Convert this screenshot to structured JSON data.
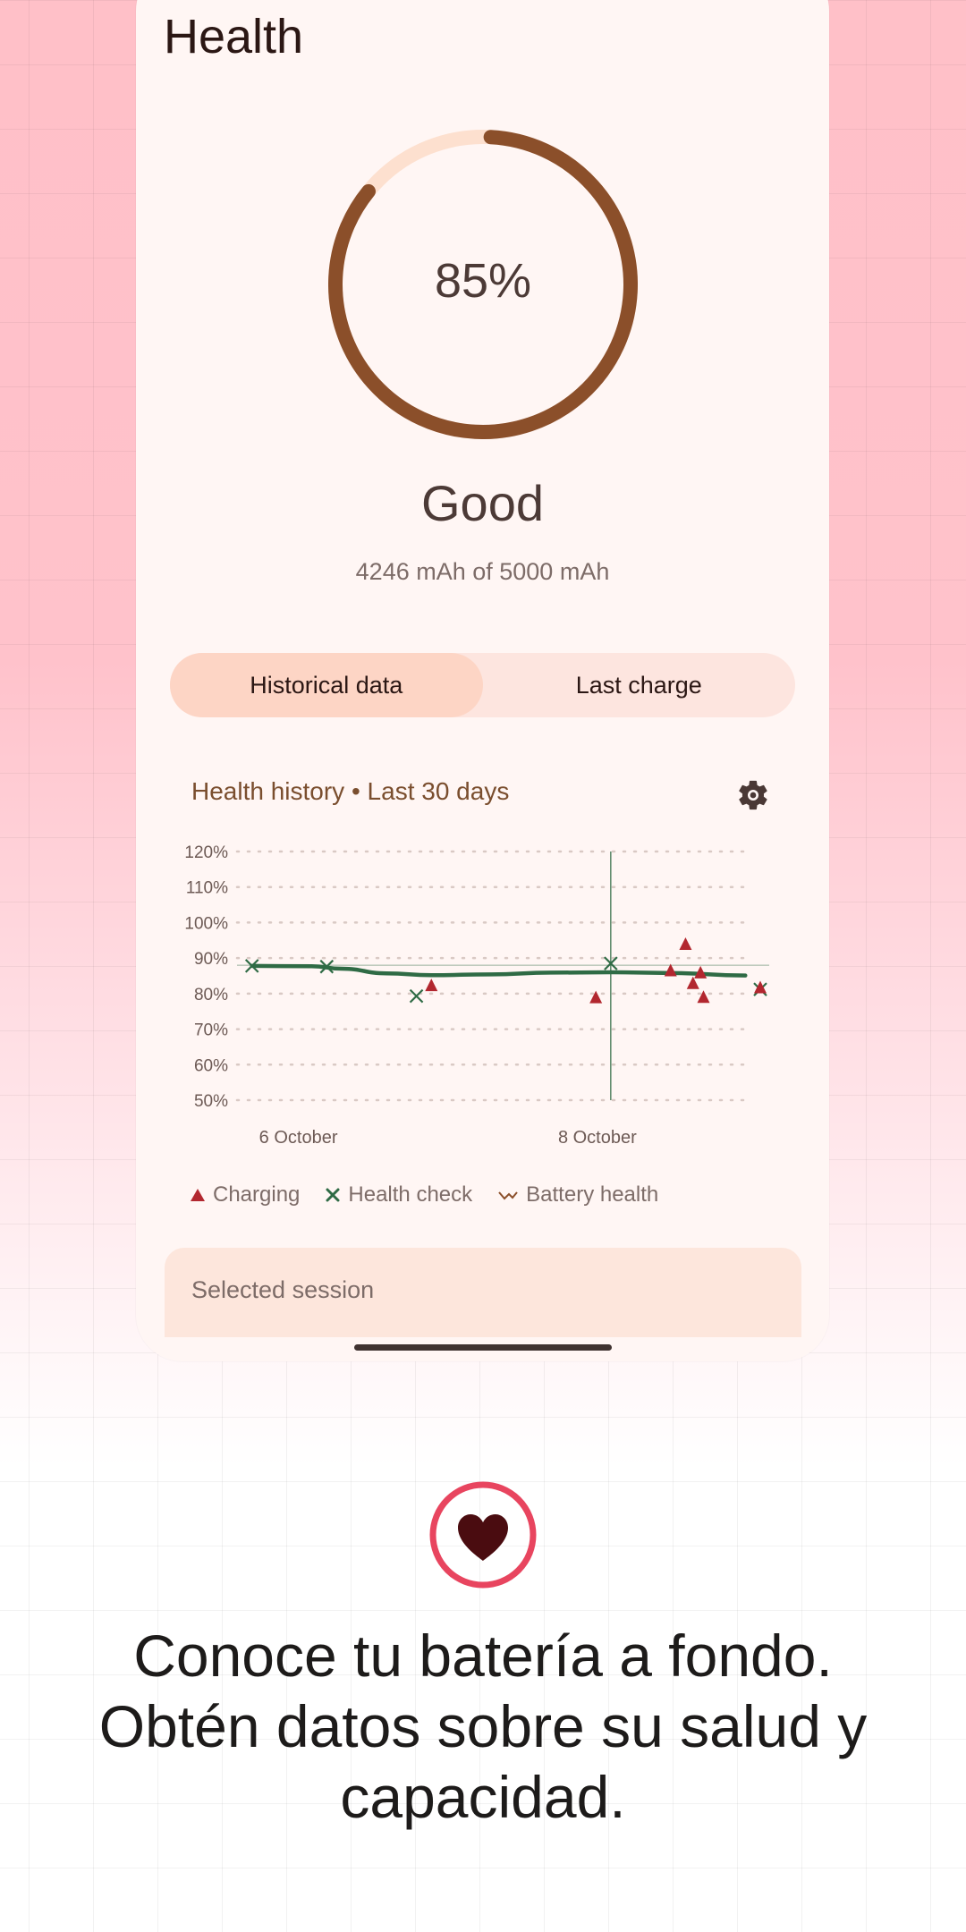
{
  "header": {
    "title": "Health"
  },
  "gauge": {
    "percent_text": "85%",
    "fill_fraction": 0.85,
    "status": "Good",
    "capacity": "4246 mAh of 5000 mAh"
  },
  "tabs": [
    {
      "label": "Historical data",
      "active": true
    },
    {
      "label": "Last charge",
      "active": false
    }
  ],
  "history": {
    "title": "Health history • Last 30 days"
  },
  "chart_data": {
    "type": "line",
    "title": "Health history • Last 30 days",
    "x_tick_labels": [
      "6 October",
      "8 October"
    ],
    "y_ticks": [
      50,
      60,
      70,
      80,
      90,
      100,
      110,
      120
    ],
    "y_tick_labels": [
      "50%",
      "60%",
      "70%",
      "80%",
      "90%",
      "100%",
      "110%",
      "120%"
    ],
    "ylim": [
      50,
      120
    ],
    "xlim": [
      5.5,
      9.0
    ],
    "grid": true,
    "legend_position": "bottom",
    "highlight": {
      "x": 8.0,
      "y": 88
    },
    "series": [
      {
        "name": "Battery health",
        "kind": "line",
        "color": "#2f6b45",
        "points": [
          [
            5.6,
            87.8
          ],
          [
            6.0,
            87.7
          ],
          [
            6.2,
            87.0
          ],
          [
            6.5,
            85.7
          ],
          [
            6.8,
            85.2
          ],
          [
            7.2,
            85.4
          ],
          [
            7.6,
            85.9
          ],
          [
            8.0,
            86.0
          ],
          [
            8.4,
            85.8
          ],
          [
            8.9,
            85.1
          ]
        ]
      },
      {
        "name": "Health check",
        "kind": "scatter",
        "marker": "x",
        "color": "#2f6b45",
        "points": [
          [
            5.6,
            87.8
          ],
          [
            6.1,
            87.6
          ],
          [
            6.7,
            79.3
          ],
          [
            8.0,
            88.5
          ],
          [
            9.0,
            81.2
          ]
        ]
      },
      {
        "name": "Charging",
        "kind": "scatter",
        "marker": "triangle",
        "color": "#b2272f",
        "points": [
          [
            6.8,
            82.2
          ],
          [
            7.9,
            78.8
          ],
          [
            8.4,
            86.4
          ],
          [
            8.5,
            93.8
          ],
          [
            8.55,
            82.8
          ],
          [
            8.6,
            85.8
          ],
          [
            8.62,
            78.9
          ],
          [
            9.0,
            81.6
          ]
        ]
      }
    ]
  },
  "legend": {
    "charging": "Charging",
    "health_check": "Health check",
    "battery_health": "Battery health"
  },
  "session": {
    "label": "Selected session"
  },
  "promo": {
    "line1": "Conoce tu batería a fondo.",
    "line2": "Obtén datos sobre su salud y",
    "line3": "capacidad."
  },
  "colors": {
    "gauge_fill": "#8b4f2a",
    "gauge_track": "#fde0cf",
    "tab_active": "#fdd5c5",
    "health_line": "#2f6b45",
    "charging": "#b2272f",
    "heart_ring": "#e8455f",
    "heart": "#4a0c10"
  },
  "icons": {
    "settings": "gear-icon",
    "badge": "heart-icon"
  }
}
